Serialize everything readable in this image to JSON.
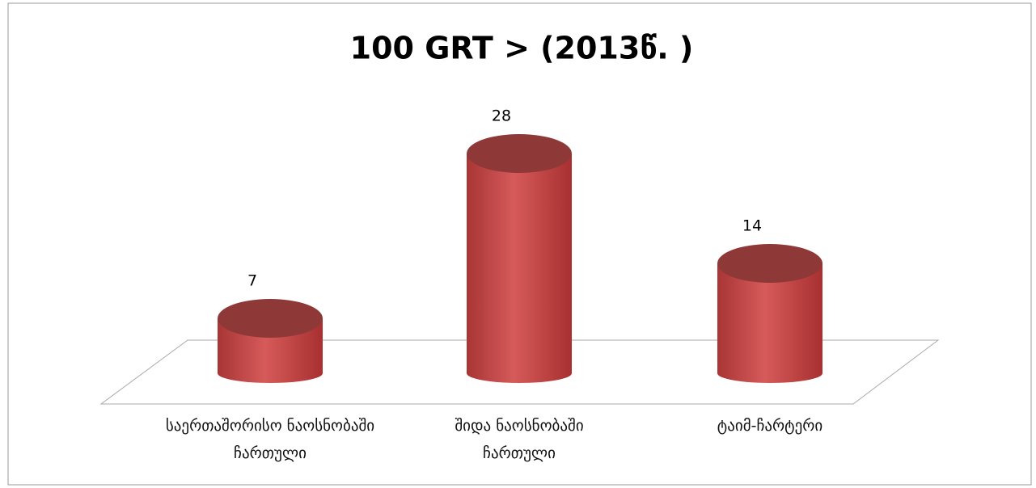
{
  "chart_data": {
    "type": "cylinder",
    "title": "100 GRT > (2013წ. )",
    "categories": [
      "საერთაშორისო ნაოსნობაში ჩართული",
      "შიდა ნაოსნობაში ჩართული",
      "ტაიმ-ჩარტერი"
    ],
    "values": [
      7,
      28,
      14
    ],
    "color": "#c84b4b"
  }
}
